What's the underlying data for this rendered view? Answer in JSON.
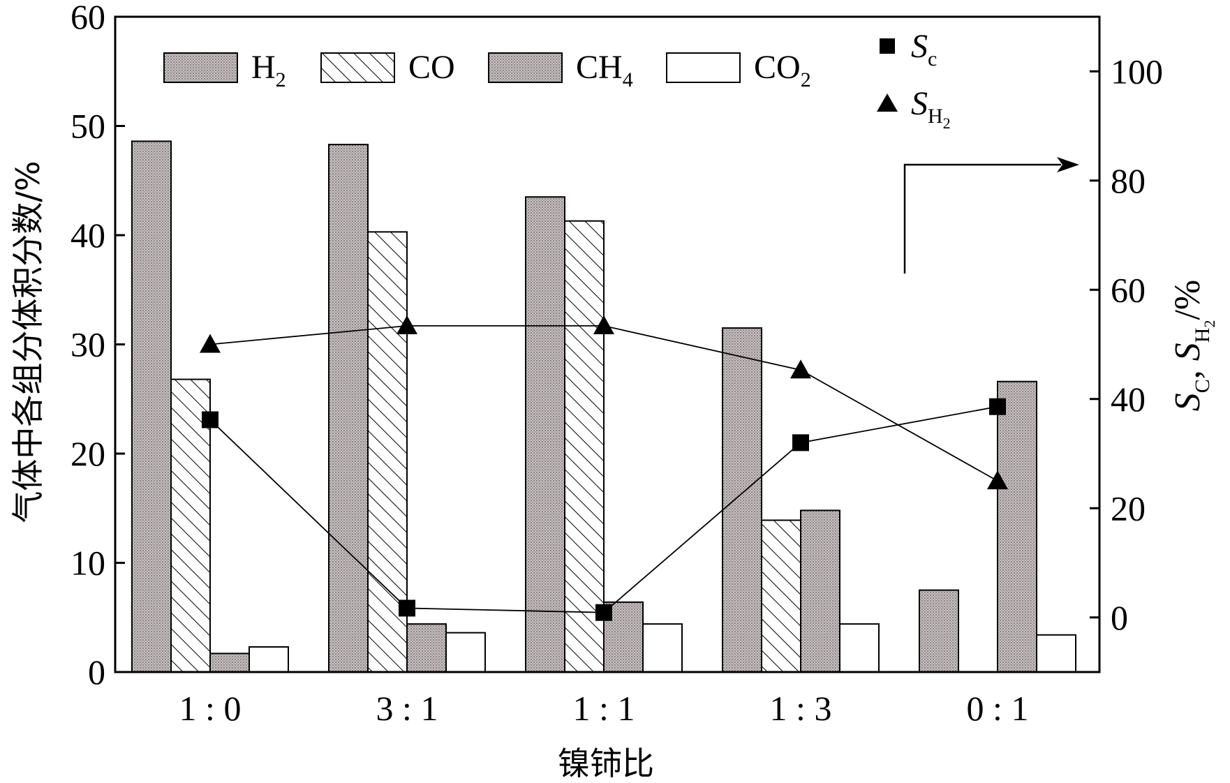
{
  "chart_data": {
    "type": "bar",
    "xlabel": "镍铈比",
    "ylabel": "气体中各组分体积分数/%",
    "y2label": "S_C, S_H2/%",
    "categories": [
      "1 : 0",
      "3 : 1",
      "1 : 1",
      "1 : 3",
      "0 : 1"
    ],
    "ylim": [
      0,
      60
    ],
    "yticks": [
      0,
      10,
      20,
      30,
      40,
      50,
      60
    ],
    "y2lim": [
      -10,
      110
    ],
    "y2ticks": [
      0,
      20,
      40,
      60,
      80,
      100
    ],
    "series": [
      {
        "name": "H",
        "sub": "2",
        "kind": "bar",
        "pattern": "dots",
        "values": [
          48.6,
          48.3,
          43.5,
          31.5,
          7.5
        ]
      },
      {
        "name": "CO",
        "sub": "",
        "kind": "bar",
        "pattern": "hatch",
        "values": [
          26.8,
          40.3,
          41.3,
          13.9,
          0
        ]
      },
      {
        "name": "CH",
        "sub": "4",
        "kind": "bar",
        "pattern": "dots",
        "values": [
          1.7,
          4.4,
          6.4,
          14.8,
          26.6
        ]
      },
      {
        "name": "CO",
        "sub": "2",
        "kind": "bar",
        "pattern": "open",
        "values": [
          2.3,
          3.6,
          4.4,
          4.4,
          3.4
        ]
      }
    ],
    "line_series": [
      {
        "name": "S",
        "sub": "c",
        "marker": "square",
        "axis": "right",
        "values": [
          36.2,
          1.7,
          0.9,
          32.0,
          38.6
        ]
      },
      {
        "name": "S",
        "sub": "H2",
        "marker": "triangle",
        "axis": "right",
        "values": [
          50.0,
          53.4,
          53.4,
          45.3,
          25.0
        ]
      }
    ],
    "annotation": "arrow points to right axis"
  }
}
